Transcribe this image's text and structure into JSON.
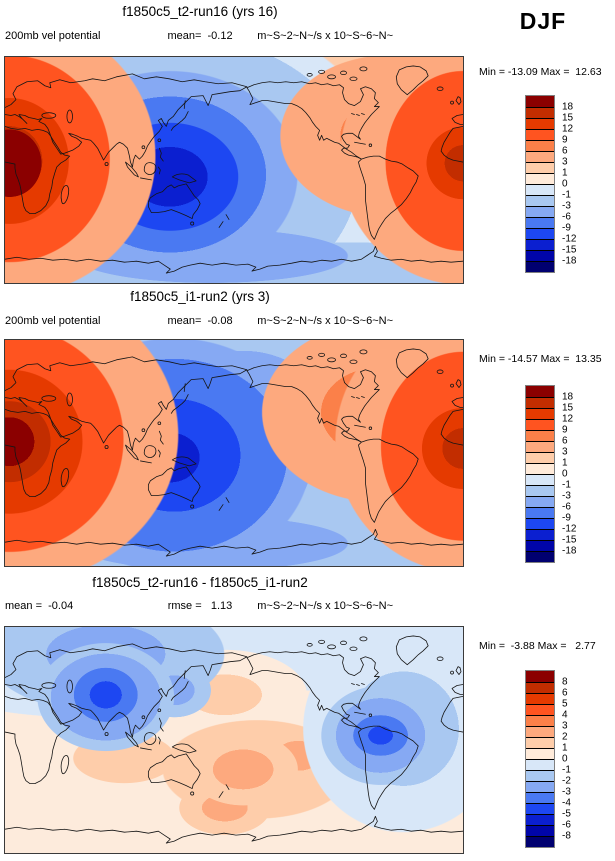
{
  "season_label": "DJF",
  "panels": [
    {
      "title": "f1850c5_t2-run16 (yrs 16)",
      "info_left": "200mb vel potential",
      "info_mid": "mean=  -0.12",
      "info_units": "m~S~2~N~/s x 10~S~6~N~",
      "range_label": "Min = -13.09 Max =  12.63",
      "colorbar": {
        "colors": [
          "#8B0000",
          "#C22D00",
          "#E53A00",
          "#FF5420",
          "#FB8049",
          "#FDA97E",
          "#FECDAA",
          "#FFEBDA",
          "#D8E7F8",
          "#A9C8F1",
          "#86A9F3",
          "#4A79F2",
          "#1D47F2",
          "#0B1FD0",
          "#0005A8",
          "#000070"
        ],
        "ticks": [
          "18",
          "15",
          "12",
          "9",
          "6",
          "3",
          "1",
          "0",
          "-1",
          "-3",
          "-6",
          "-9",
          "-12",
          "-15",
          "-18"
        ]
      }
    },
    {
      "title": "f1850c5_i1-run2 (yrs 3)",
      "info_left": "200mb vel potential",
      "info_mid": "mean=  -0.08",
      "info_units": "m~S~2~N~/s x 10~S~6~N~",
      "range_label": "Min = -14.57 Max =  13.35",
      "colorbar": {
        "colors": [
          "#8B0000",
          "#C22D00",
          "#E53A00",
          "#FF5420",
          "#FB8049",
          "#FDA97E",
          "#FECDAA",
          "#FFEBDA",
          "#D8E7F8",
          "#A9C8F1",
          "#86A9F3",
          "#4A79F2",
          "#1D47F2",
          "#0B1FD0",
          "#0005A8",
          "#000070"
        ],
        "ticks": [
          "18",
          "15",
          "12",
          "9",
          "6",
          "3",
          "1",
          "0",
          "-1",
          "-3",
          "-6",
          "-9",
          "-12",
          "-15",
          "-18"
        ]
      }
    },
    {
      "title": "f1850c5_t2-run16 - f1850c5_i1-run2",
      "info_left": "mean =  -0.04",
      "info_mid": "rmse =   1.13",
      "info_units": "m~S~2~N~/s x 10~S~6~N~",
      "range_label": "Min =  -3.88 Max =   2.77",
      "colorbar": {
        "colors": [
          "#8B0000",
          "#C22D00",
          "#E53A00",
          "#FF5420",
          "#FB8049",
          "#FDA97E",
          "#FECDAA",
          "#FFEBDA",
          "#D8E7F8",
          "#A9C8F1",
          "#86A9F3",
          "#4A79F2",
          "#1D47F2",
          "#0B1FD0",
          "#0005A8",
          "#000070"
        ],
        "ticks": [
          "8",
          "6",
          "5",
          "4",
          "3",
          "2",
          "1",
          "0",
          "-1",
          "-2",
          "-3",
          "-4",
          "-5",
          "-6",
          "-8"
        ]
      }
    }
  ],
  "chart_data": [
    {
      "type": "heatmap",
      "title": "f1850c5_t2-run16 (yrs 16)",
      "variable": "200mb vel potential",
      "season": "DJF",
      "units": "m~S~2~N~/s x 10~S~6~N~",
      "mean": -0.12,
      "min": -13.09,
      "max": 12.63,
      "contour_levels": [
        -18,
        -15,
        -12,
        -9,
        -6,
        -3,
        -1,
        0,
        1,
        3,
        6,
        9,
        12,
        15,
        18
      ],
      "palette_low_to_high": [
        "#000070",
        "#0005A8",
        "#0B1FD0",
        "#1D47F2",
        "#4A79F2",
        "#86A9F3",
        "#A9C8F1",
        "#D8E7F8",
        "#FFEBDA",
        "#FECDAA",
        "#FDA97E",
        "#FB8049",
        "#FF5420",
        "#E53A00",
        "#C22D00",
        "#8B0000"
      ],
      "projection": {
        "type": "cylindrical equidistant world map",
        "lon_range": [
          0,
          360
        ],
        "lat_range": [
          -90,
          90
        ]
      },
      "legend_position": "right"
    },
    {
      "type": "heatmap",
      "title": "f1850c5_i1-run2 (yrs 3)",
      "variable": "200mb vel potential",
      "season": "DJF",
      "units": "m~S~2~N~/s x 10~S~6~N~",
      "mean": -0.08,
      "min": -14.57,
      "max": 13.35,
      "contour_levels": [
        -18,
        -15,
        -12,
        -9,
        -6,
        -3,
        -1,
        0,
        1,
        3,
        6,
        9,
        12,
        15,
        18
      ],
      "palette_low_to_high": [
        "#000070",
        "#0005A8",
        "#0B1FD0",
        "#1D47F2",
        "#4A79F2",
        "#86A9F3",
        "#A9C8F1",
        "#D8E7F8",
        "#FFEBDA",
        "#FECDAA",
        "#FDA97E",
        "#FB8049",
        "#FF5420",
        "#E53A00",
        "#C22D00",
        "#8B0000"
      ],
      "projection": {
        "type": "cylindrical equidistant world map",
        "lon_range": [
          0,
          360
        ],
        "lat_range": [
          -90,
          90
        ]
      },
      "legend_position": "right"
    },
    {
      "type": "heatmap",
      "title": "f1850c5_t2-run16 - f1850c5_i1-run2",
      "variable": "200mb vel potential difference",
      "season": "DJF",
      "units": "m~S~2~N~/s x 10~S~6~N~",
      "mean": -0.04,
      "rmse": 1.13,
      "min": -3.88,
      "max": 2.77,
      "contour_levels": [
        -8,
        -6,
        -5,
        -4,
        -3,
        -2,
        -1,
        0,
        1,
        2,
        3,
        4,
        5,
        6,
        8
      ],
      "palette_low_to_high": [
        "#000070",
        "#0005A8",
        "#0B1FD0",
        "#1D47F2",
        "#4A79F2",
        "#86A9F3",
        "#A9C8F1",
        "#D8E7F8",
        "#FFEBDA",
        "#FECDAA",
        "#FDA97E",
        "#FB8049",
        "#FF5420",
        "#E53A00",
        "#C22D00",
        "#8B0000"
      ],
      "projection": {
        "type": "cylindrical equidistant world map",
        "lon_range": [
          0,
          360
        ],
        "lat_range": [
          -90,
          90
        ]
      },
      "legend_position": "right"
    }
  ]
}
